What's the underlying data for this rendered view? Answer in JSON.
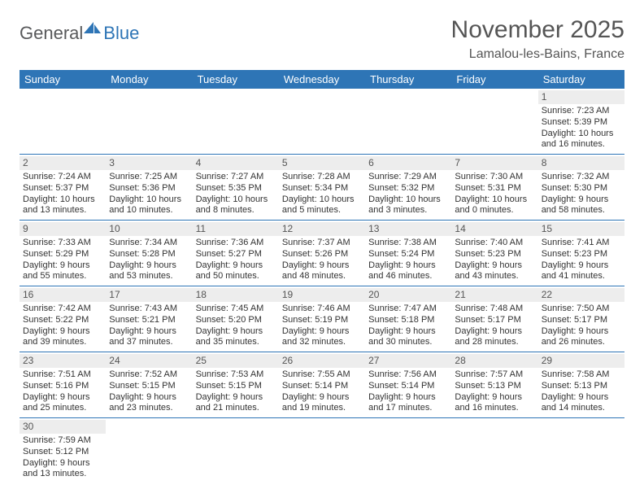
{
  "logo": {
    "part1": "General",
    "part2": "Blue",
    "icon_fill": "#2e75b6",
    "text1_color": "#58595b",
    "text2_color": "#2e75b6"
  },
  "header": {
    "month_title": "November 2025",
    "location": "Lamalou-les-Bains, France"
  },
  "style": {
    "header_bg": "#2e75b6",
    "header_fg": "#ffffff",
    "row_divider": "#2e75b6",
    "daynum_bg": "#ededed",
    "page_bg": "#ffffff",
    "text_color": "#333333",
    "th_fontsize": 13,
    "cell_fontsize": 11,
    "month_fontsize": 30,
    "location_fontsize": 16
  },
  "weekdays": [
    "Sunday",
    "Monday",
    "Tuesday",
    "Wednesday",
    "Thursday",
    "Friday",
    "Saturday"
  ],
  "leading_blanks": 6,
  "days": [
    {
      "n": 1,
      "sunrise": "7:23 AM",
      "sunset": "5:39 PM",
      "daylight": "10 hours and 16 minutes."
    },
    {
      "n": 2,
      "sunrise": "7:24 AM",
      "sunset": "5:37 PM",
      "daylight": "10 hours and 13 minutes."
    },
    {
      "n": 3,
      "sunrise": "7:25 AM",
      "sunset": "5:36 PM",
      "daylight": "10 hours and 10 minutes."
    },
    {
      "n": 4,
      "sunrise": "7:27 AM",
      "sunset": "5:35 PM",
      "daylight": "10 hours and 8 minutes."
    },
    {
      "n": 5,
      "sunrise": "7:28 AM",
      "sunset": "5:34 PM",
      "daylight": "10 hours and 5 minutes."
    },
    {
      "n": 6,
      "sunrise": "7:29 AM",
      "sunset": "5:32 PM",
      "daylight": "10 hours and 3 minutes."
    },
    {
      "n": 7,
      "sunrise": "7:30 AM",
      "sunset": "5:31 PM",
      "daylight": "10 hours and 0 minutes."
    },
    {
      "n": 8,
      "sunrise": "7:32 AM",
      "sunset": "5:30 PM",
      "daylight": "9 hours and 58 minutes."
    },
    {
      "n": 9,
      "sunrise": "7:33 AM",
      "sunset": "5:29 PM",
      "daylight": "9 hours and 55 minutes."
    },
    {
      "n": 10,
      "sunrise": "7:34 AM",
      "sunset": "5:28 PM",
      "daylight": "9 hours and 53 minutes."
    },
    {
      "n": 11,
      "sunrise": "7:36 AM",
      "sunset": "5:27 PM",
      "daylight": "9 hours and 50 minutes."
    },
    {
      "n": 12,
      "sunrise": "7:37 AM",
      "sunset": "5:26 PM",
      "daylight": "9 hours and 48 minutes."
    },
    {
      "n": 13,
      "sunrise": "7:38 AM",
      "sunset": "5:24 PM",
      "daylight": "9 hours and 46 minutes."
    },
    {
      "n": 14,
      "sunrise": "7:40 AM",
      "sunset": "5:23 PM",
      "daylight": "9 hours and 43 minutes."
    },
    {
      "n": 15,
      "sunrise": "7:41 AM",
      "sunset": "5:23 PM",
      "daylight": "9 hours and 41 minutes."
    },
    {
      "n": 16,
      "sunrise": "7:42 AM",
      "sunset": "5:22 PM",
      "daylight": "9 hours and 39 minutes."
    },
    {
      "n": 17,
      "sunrise": "7:43 AM",
      "sunset": "5:21 PM",
      "daylight": "9 hours and 37 minutes."
    },
    {
      "n": 18,
      "sunrise": "7:45 AM",
      "sunset": "5:20 PM",
      "daylight": "9 hours and 35 minutes."
    },
    {
      "n": 19,
      "sunrise": "7:46 AM",
      "sunset": "5:19 PM",
      "daylight": "9 hours and 32 minutes."
    },
    {
      "n": 20,
      "sunrise": "7:47 AM",
      "sunset": "5:18 PM",
      "daylight": "9 hours and 30 minutes."
    },
    {
      "n": 21,
      "sunrise": "7:48 AM",
      "sunset": "5:17 PM",
      "daylight": "9 hours and 28 minutes."
    },
    {
      "n": 22,
      "sunrise": "7:50 AM",
      "sunset": "5:17 PM",
      "daylight": "9 hours and 26 minutes."
    },
    {
      "n": 23,
      "sunrise": "7:51 AM",
      "sunset": "5:16 PM",
      "daylight": "9 hours and 25 minutes."
    },
    {
      "n": 24,
      "sunrise": "7:52 AM",
      "sunset": "5:15 PM",
      "daylight": "9 hours and 23 minutes."
    },
    {
      "n": 25,
      "sunrise": "7:53 AM",
      "sunset": "5:15 PM",
      "daylight": "9 hours and 21 minutes."
    },
    {
      "n": 26,
      "sunrise": "7:55 AM",
      "sunset": "5:14 PM",
      "daylight": "9 hours and 19 minutes."
    },
    {
      "n": 27,
      "sunrise": "7:56 AM",
      "sunset": "5:14 PM",
      "daylight": "9 hours and 17 minutes."
    },
    {
      "n": 28,
      "sunrise": "7:57 AM",
      "sunset": "5:13 PM",
      "daylight": "9 hours and 16 minutes."
    },
    {
      "n": 29,
      "sunrise": "7:58 AM",
      "sunset": "5:13 PM",
      "daylight": "9 hours and 14 minutes."
    },
    {
      "n": 30,
      "sunrise": "7:59 AM",
      "sunset": "5:12 PM",
      "daylight": "9 hours and 13 minutes."
    }
  ],
  "labels": {
    "sunrise": "Sunrise:",
    "sunset": "Sunset:",
    "daylight": "Daylight:"
  }
}
